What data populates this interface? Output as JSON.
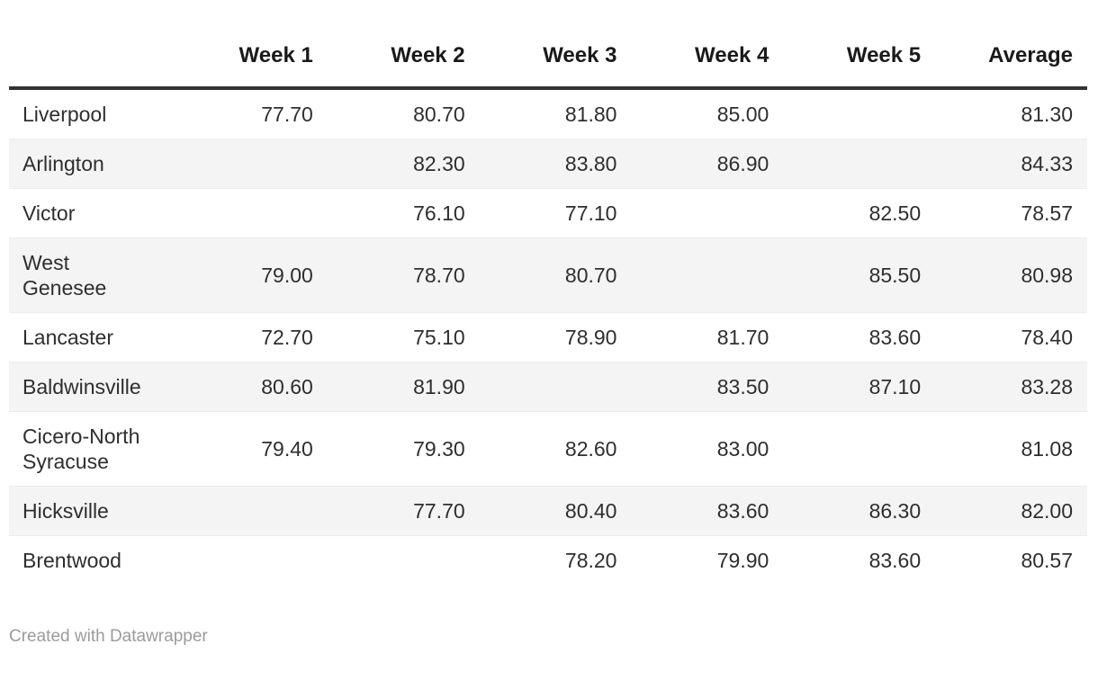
{
  "chart_data": {
    "type": "table",
    "columns": [
      "Week 1",
      "Week 2",
      "Week 3",
      "Week 4",
      "Week 5",
      "Average"
    ],
    "rows": [
      {
        "name": "Liverpool",
        "values": [
          "77.70",
          "80.70",
          "81.80",
          "85.00",
          "",
          "81.30"
        ]
      },
      {
        "name": "Arlington",
        "values": [
          "",
          "82.30",
          "83.80",
          "86.90",
          "",
          "84.33"
        ]
      },
      {
        "name": "Victor",
        "values": [
          "",
          "76.10",
          "77.10",
          "",
          "82.50",
          "78.57"
        ]
      },
      {
        "name": "West\nGenesee",
        "values": [
          "79.00",
          "78.70",
          "80.70",
          "",
          "85.50",
          "80.98"
        ]
      },
      {
        "name": "Lancaster",
        "values": [
          "72.70",
          "75.10",
          "78.90",
          "81.70",
          "83.60",
          "78.40"
        ]
      },
      {
        "name": "Baldwinsville",
        "values": [
          "80.60",
          "81.90",
          "",
          "83.50",
          "87.10",
          "83.28"
        ]
      },
      {
        "name": "Cicero-North\nSyracuse",
        "values": [
          "79.40",
          "79.30",
          "82.60",
          "83.00",
          "",
          "81.08"
        ]
      },
      {
        "name": "Hicksville",
        "values": [
          "",
          "77.70",
          "80.40",
          "83.60",
          "86.30",
          "82.00"
        ]
      },
      {
        "name": "Brentwood",
        "values": [
          "",
          "",
          "78.20",
          "79.90",
          "83.60",
          "80.57"
        ]
      }
    ],
    "layout_hints": {
      "striped": true,
      "header_rule": true,
      "value_alignment": "right"
    }
  },
  "footer": {
    "credit": "Created with Datawrapper"
  },
  "colors": {
    "background": "#ffffff",
    "header_text": "#1a1a1a",
    "body_text": "#2e2e2e",
    "stripe": "#f4f4f4",
    "header_rule": "#333333",
    "row_border": "#ececec",
    "footer_text": "#9b9b9b"
  }
}
